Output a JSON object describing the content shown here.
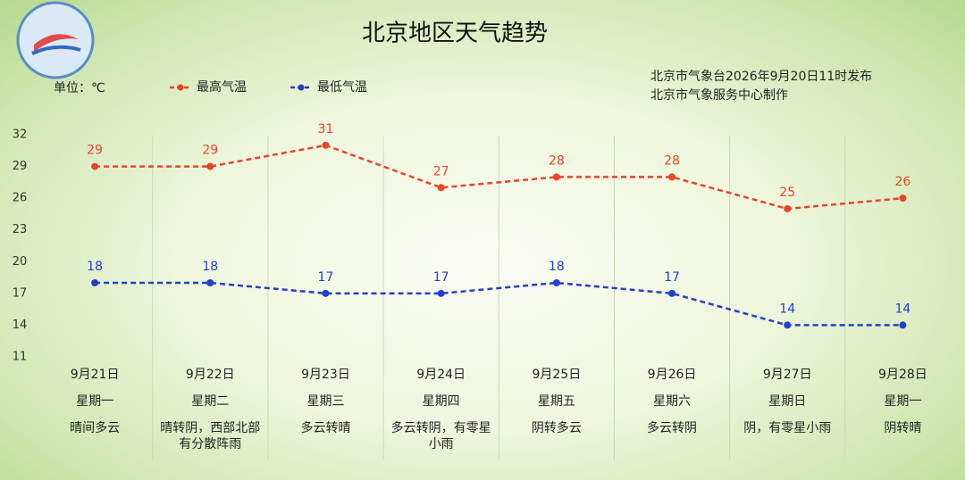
{
  "chart_data": {
    "type": "line",
    "title": "北京地区天气趋势",
    "unit_label": "单位：℃",
    "notes": [
      "北京市气象台2026年9月20日11时发布",
      "北京市气象服务中心制作"
    ],
    "categories": [
      "9月21日",
      "9月22日",
      "9月23日",
      "9月24日",
      "9月25日",
      "9月26日",
      "9月27日",
      "9月28日"
    ],
    "weekdays": [
      "星期一",
      "星期二",
      "星期三",
      "星期四",
      "星期五",
      "星期六",
      "星期日",
      "星期一"
    ],
    "weather": [
      "晴间多云",
      "晴转阴，西部北部有分散阵雨",
      "多云转晴",
      "多云转阴，有零星小雨",
      "阴转多云",
      "多云转阴",
      "阴，有零星小雨",
      "阴转晴"
    ],
    "series": [
      {
        "name": "最高气温",
        "color": "#e8452a",
        "values": [
          29,
          29,
          31,
          27,
          28,
          28,
          25,
          26
        ]
      },
      {
        "name": "最低气温",
        "color": "#2340c8",
        "values": [
          18,
          18,
          17,
          17,
          18,
          17,
          14,
          14
        ]
      }
    ],
    "ylim": [
      11,
      32
    ],
    "yticks": [
      11,
      14,
      17,
      20,
      23,
      26,
      29,
      32
    ]
  }
}
